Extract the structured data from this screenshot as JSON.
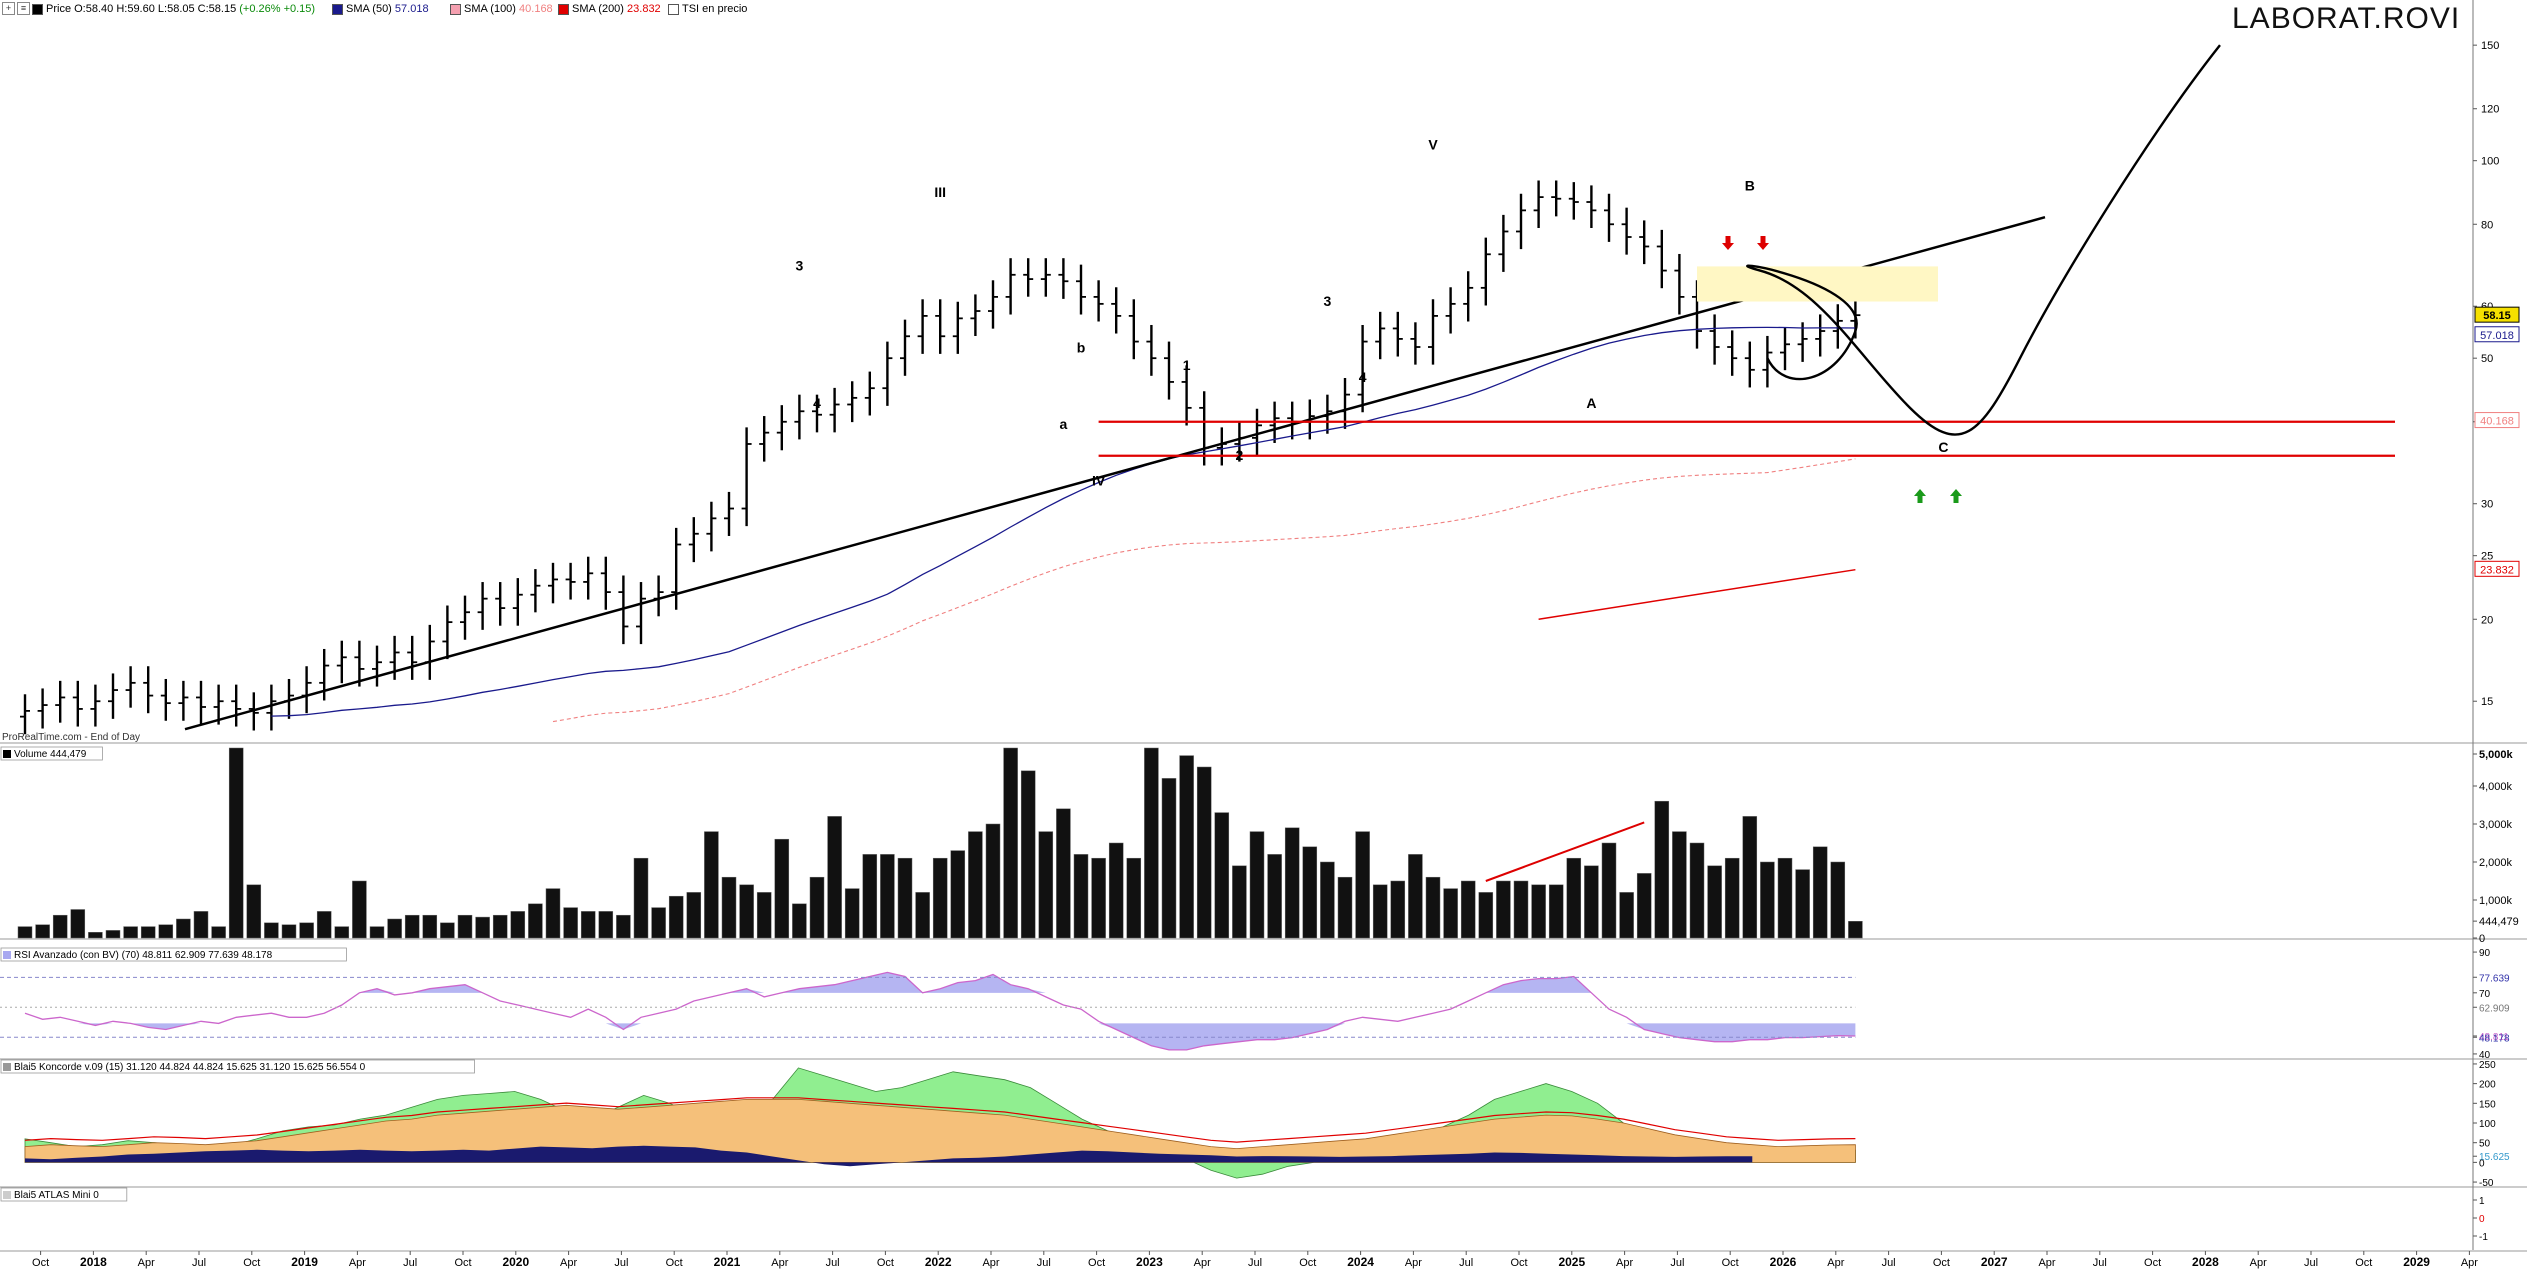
{
  "header": {
    "price_label": "Price",
    "ohlc": "O:58.40 H:59.60 L:58.05 C:58.15",
    "change": "(+0.26% +0.15)",
    "sma50_label": "SMA (50)",
    "sma50_value": "57.018",
    "sma100_label": "SMA (100)",
    "sma100_value": "40.168",
    "sma200_label": "SMA (200)",
    "sma200_value": "23.832",
    "tsi_label": "TSI en precio",
    "ticker": "LABORAT.ROVI",
    "source": "ProRealTime.com - End of Day"
  },
  "colors": {
    "price": "#000000",
    "sma50": "#1a1a8c",
    "sma100": "#f08080",
    "sma200": "#e00000",
    "support": "#e00000",
    "last_price_bg": "#f5e000",
    "rsi_line": "#cc66cc",
    "rsi_fill": "#a8a8f0",
    "konc_green": "#90ee90",
    "konc_orange": "#f5c07a",
    "konc_navy": "#1a1a6e"
  },
  "volume_panel": {
    "label": "Volume",
    "value": "444,479"
  },
  "rsi_panel": {
    "label": "RSI Avanzado (con BV) (70)",
    "v1": "48.811",
    "v2": "62.909",
    "v3": "77.639",
    "v4": "48.178"
  },
  "koncorde_panel": {
    "label": "Blai5 Koncorde v.09 (15)",
    "v1": "31.120",
    "v2": "44.824",
    "v3": "44.824",
    "v4": "15.625",
    "v5": "31.120",
    "v6": "15.625",
    "v7": "56.554",
    "v8": "0"
  },
  "atlas_panel": {
    "label": "Blai5 ATLAS Mini",
    "value": "0"
  },
  "chart_data": {
    "type": "bar",
    "subtype": "ohlc-monthly",
    "y_scale": "log",
    "ylim": [
      13,
      165
    ],
    "y_ticks": [
      "150",
      "120",
      "100",
      "80",
      "60",
      "50",
      "40",
      "30",
      "25",
      "20",
      "15"
    ],
    "last_price": "58.15",
    "right_labels": [
      "58.15",
      "57.018",
      "40.168",
      "23.832"
    ],
    "x_ticks": [
      "Oct",
      "2018",
      "Apr",
      "Jul",
      "Oct",
      "2019",
      "Apr",
      "Jul",
      "Oct",
      "2020",
      "Apr",
      "Jul",
      "Oct",
      "2021",
      "Apr",
      "Jul",
      "Oct",
      "2022",
      "Apr",
      "Jul",
      "Oct",
      "2023",
      "Apr",
      "Jul",
      "Oct",
      "2024",
      "Apr",
      "Jul",
      "Oct",
      "2025",
      "Apr",
      "Jul",
      "Oct",
      "2026",
      "Apr",
      "Jul",
      "Oct",
      "2027",
      "Apr",
      "Jul",
      "Oct",
      "2028",
      "Apr",
      "Jul",
      "Oct",
      "2029",
      "Apr"
    ],
    "x_start": "2017-09",
    "wave_labels": [
      {
        "t": "3",
        "x": "2021-05",
        "y": 68
      },
      {
        "t": "4",
        "x": "2021-06",
        "y": 42
      },
      {
        "t": "III",
        "x": "2022-01",
        "y": 88
      },
      {
        "t": "b",
        "x": "2022-09",
        "y": 51
      },
      {
        "t": "a",
        "x": "2022-08",
        "y": 39
      },
      {
        "t": "IV",
        "x": "2022-10",
        "y": 32
      },
      {
        "t": "1",
        "x": "2023-03",
        "y": 48
      },
      {
        "t": "2",
        "x": "2023-06",
        "y": 35
      },
      {
        "t": "3",
        "x": "2023-11",
        "y": 60
      },
      {
        "t": "4",
        "x": "2024-01",
        "y": 46
      },
      {
        "t": "V",
        "x": "2024-05",
        "y": 104
      },
      {
        "t": "A",
        "x": "2025-02",
        "y": 42
      },
      {
        "t": "B",
        "x": "2025-11",
        "y": 90
      },
      {
        "t": "C",
        "x": "2026-10",
        "y": 36
      }
    ],
    "support_lines": [
      40,
      35.5
    ],
    "volume_ticks": [
      "5,000k",
      "4,000k",
      "3,000k",
      "2,000k",
      "1,000k",
      "444,479",
      "0"
    ],
    "rsi_ticks": [
      "90",
      "77.639",
      "70",
      "62.909",
      "48.811",
      "48.178",
      "40"
    ],
    "konc_ticks": [
      "250",
      "200",
      "150",
      "100",
      "50",
      "15.625",
      "0",
      "-50"
    ],
    "atlas_ticks": [
      "1",
      "0",
      "-1"
    ]
  }
}
